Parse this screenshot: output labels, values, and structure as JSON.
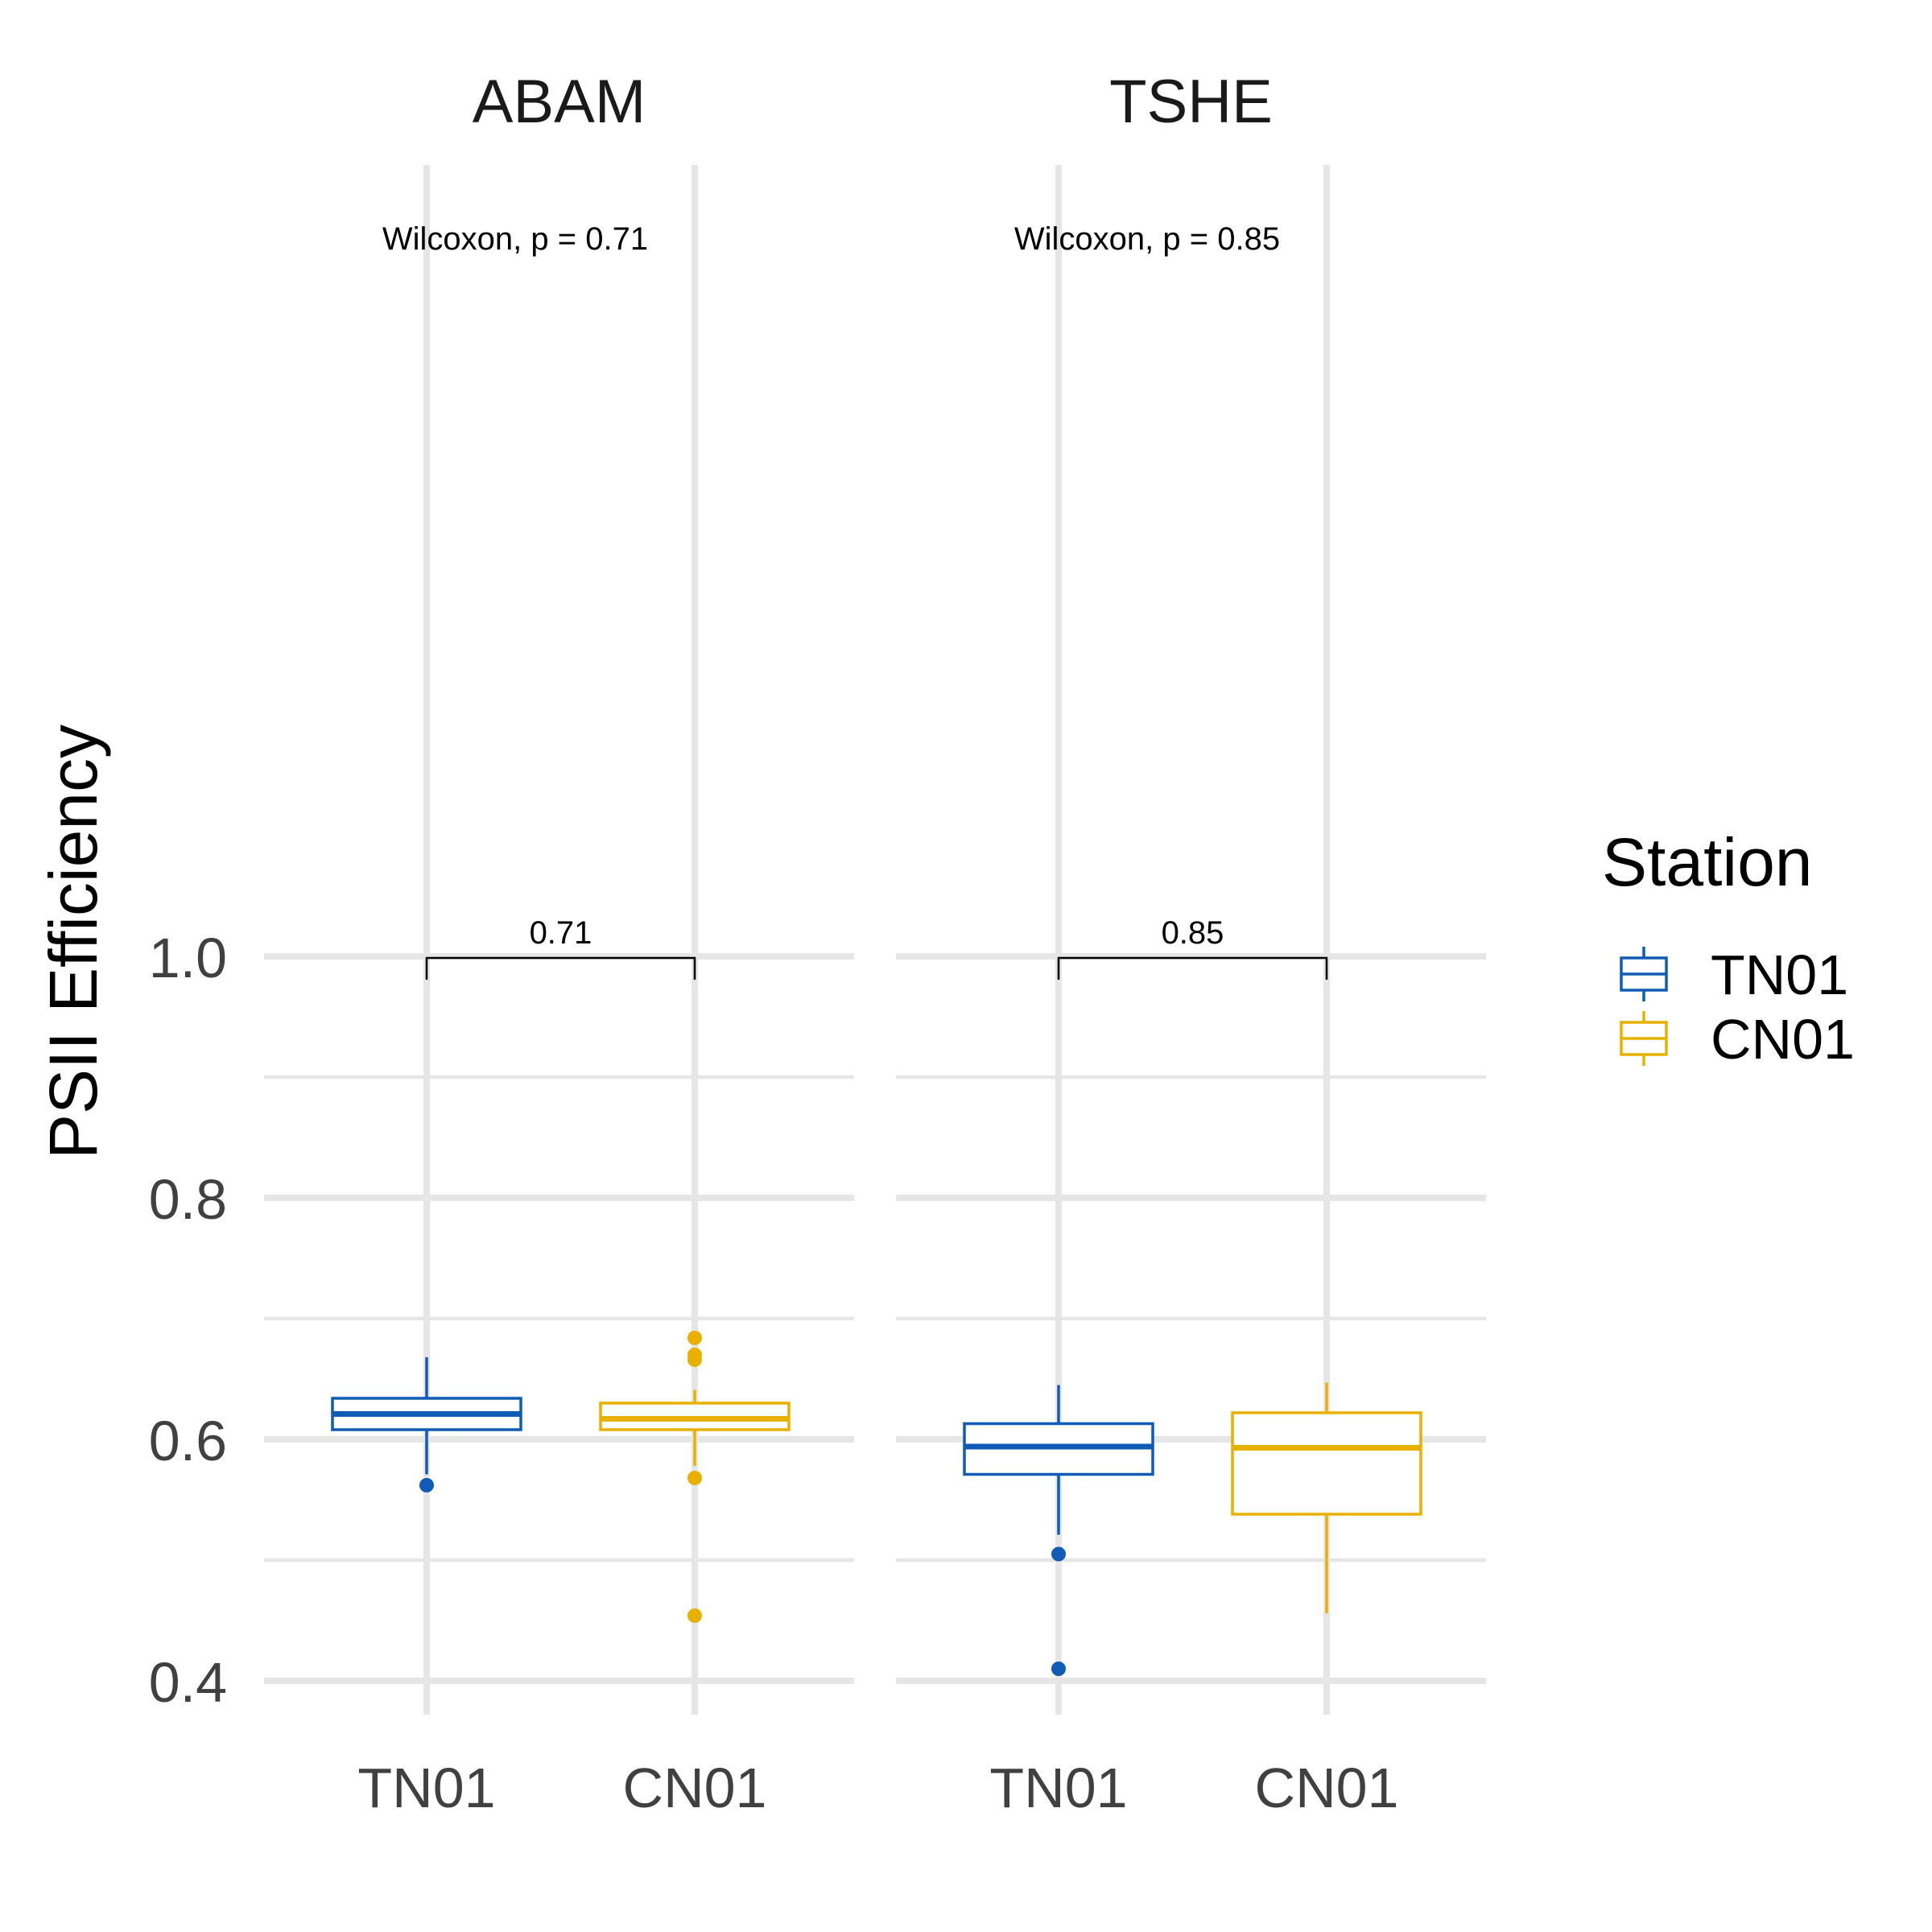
{
  "chart_data": {
    "type": "boxplot",
    "ylabel": "PSII Efficiency",
    "ylim": [
      0.385,
      1.03
    ],
    "yticks": [
      0.4,
      0.6,
      0.8,
      1.0
    ],
    "ytick_labels": [
      "0.4",
      "0.6",
      "0.8",
      "1.0"
    ],
    "grid": true,
    "legend": {
      "title": "Station",
      "position": "right",
      "entries": [
        {
          "name": "TN01",
          "color": "#0f5bb5"
        },
        {
          "name": "CN01",
          "color": "#e8b100"
        }
      ]
    },
    "categories": [
      "TN01",
      "CN01"
    ],
    "panels": [
      {
        "facet": "ABAM",
        "test_label": "Wilcoxon, p = 0.71",
        "bracket_label": "0.71",
        "boxes": [
          {
            "group": "TN01",
            "whisker_low": 0.571,
            "q1": 0.608,
            "median": 0.621,
            "q3": 0.634,
            "whisker_high": 0.668,
            "outliers": [
              0.562
            ]
          },
          {
            "group": "CN01",
            "whisker_low": 0.578,
            "q1": 0.608,
            "median": 0.617,
            "q3": 0.63,
            "whisker_high": 0.641,
            "outliers": [
              0.684,
              0.67,
              0.666,
              0.568,
              0.454
            ]
          }
        ]
      },
      {
        "facet": "TSHE",
        "test_label": "Wilcoxon, p = 0.85",
        "bracket_label": "0.85",
        "boxes": [
          {
            "group": "TN01",
            "whisker_low": 0.521,
            "q1": 0.571,
            "median": 0.594,
            "q3": 0.613,
            "whisker_high": 0.645,
            "outliers": [
              0.505,
              0.41
            ]
          },
          {
            "group": "CN01",
            "whisker_low": 0.456,
            "q1": 0.538,
            "median": 0.593,
            "q3": 0.622,
            "whisker_high": 0.647,
            "outliers": []
          }
        ]
      }
    ]
  }
}
